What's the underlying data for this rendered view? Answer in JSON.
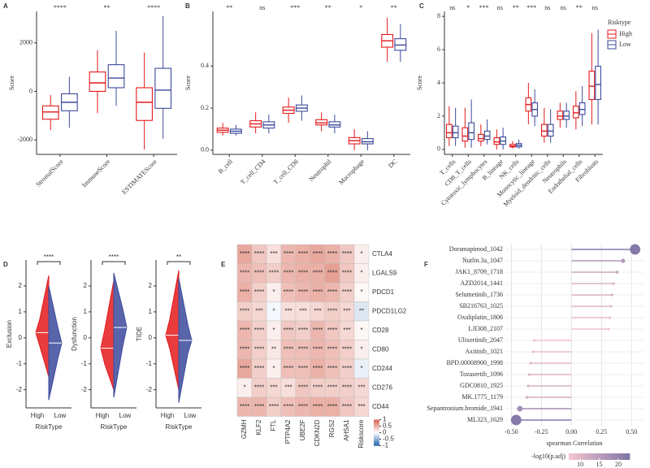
{
  "chart_data": [
    {
      "type": "box",
      "panel": "A",
      "ylabel": "Score",
      "categories": [
        "StromalScore",
        "ImmuneScore",
        "ESTIMATEScore"
      ],
      "significance": [
        "****",
        "**",
        "****"
      ],
      "ylim": [
        -2600,
        3300
      ],
      "yticks": [
        -2000,
        0,
        2000
      ],
      "series": [
        {
          "color": "#e41a1c",
          "values": [
            [
              -1600,
              -1150,
              -850,
              -600,
              -150
            ],
            [
              -900,
              0,
              350,
              800,
              1700
            ],
            [
              -2400,
              -1200,
              -450,
              150,
              1600
            ]
          ]
        },
        {
          "color": "#3c4a9c",
          "values": [
            [
              -1500,
              -800,
              -450,
              -100,
              600
            ],
            [
              -600,
              150,
              550,
              1100,
              2500
            ],
            [
              -1950,
              -700,
              50,
              950,
              3100
            ]
          ]
        }
      ]
    },
    {
      "type": "box",
      "panel": "B",
      "ylabel": "Score",
      "categories": [
        "B_cell",
        "T_cell_CD4",
        "T_cell_CD8",
        "Neutrophil",
        "Macrophage",
        "DC"
      ],
      "significance": [
        "**",
        "ns",
        "***",
        "**",
        "*",
        "**"
      ],
      "ylim": [
        -0.02,
        0.66
      ],
      "yticks": [
        {
          "value": 0,
          "label": "0.0"
        },
        0.2,
        0.4
      ],
      "series": [
        {
          "color": "#e41a1c",
          "values": [
            [
              0.07,
              0.085,
              0.095,
              0.105,
              0.13
            ],
            [
              0.08,
              0.11,
              0.125,
              0.14,
              0.18
            ],
            [
              0.13,
              0.175,
              0.19,
              0.205,
              0.25
            ],
            [
              0.09,
              0.12,
              0.13,
              0.145,
              0.18
            ],
            [
              0.0,
              0.03,
              0.045,
              0.06,
              0.1
            ],
            [
              0.42,
              0.49,
              0.52,
              0.55,
              0.63
            ]
          ]
        },
        {
          "color": "#3c4a9c",
          "values": [
            [
              0.07,
              0.08,
              0.09,
              0.1,
              0.12
            ],
            [
              0.08,
              0.105,
              0.12,
              0.135,
              0.17
            ],
            [
              0.14,
              0.185,
              0.2,
              0.215,
              0.26
            ],
            [
              0.08,
              0.11,
              0.12,
              0.135,
              0.17
            ],
            [
              0.0,
              0.03,
              0.04,
              0.055,
              0.09
            ],
            [
              0.42,
              0.475,
              0.5,
              0.53,
              0.6
            ]
          ]
        }
      ]
    },
    {
      "type": "box",
      "panel": "C",
      "ylabel": "Score",
      "categories": [
        "T_cells",
        "CD8_T_cells",
        "Cytotoxic_lymphocytes",
        "B_lineage",
        "NK_cells",
        "Monocytic_lineage",
        "Myeloid_dendritic_cells",
        "Neutrophils",
        "Endothelial_cells",
        "Fibroblasts"
      ],
      "significance": [
        "ns",
        "*",
        "***",
        "ns",
        "**",
        "***",
        "ns",
        "ns",
        "**",
        "ns"
      ],
      "ylim": [
        -0.3,
        8.3
      ],
      "yticks": [
        0,
        2,
        4,
        6,
        8
      ],
      "legend_title": "Risktype",
      "series": [
        {
          "name": "High",
          "color": "#e41a1c",
          "values": [
            [
              0.2,
              0.7,
              1.0,
              1.5,
              2.6
            ],
            [
              0.1,
              0.5,
              0.8,
              1.3,
              2.5
            ],
            [
              0.2,
              0.5,
              0.65,
              0.9,
              1.5
            ],
            [
              0.0,
              0.3,
              0.45,
              0.7,
              1.2
            ],
            [
              0.05,
              0.15,
              0.2,
              0.3,
              0.5
            ],
            [
              1.5,
              2.3,
              2.7,
              3.1,
              4.0
            ],
            [
              0.4,
              0.8,
              1.1,
              1.5,
              2.5
            ],
            [
              1.3,
              1.8,
              2.0,
              2.3,
              2.8
            ],
            [
              1.2,
              1.9,
              2.2,
              2.6,
              3.5
            ],
            [
              1.5,
              3.0,
              3.8,
              4.7,
              7.0
            ]
          ]
        },
        {
          "name": "Low",
          "color": "#3c4a9c",
          "values": [
            [
              0.2,
              0.7,
              1.0,
              1.4,
              2.5
            ],
            [
              0.1,
              0.6,
              1.0,
              1.6,
              3.0
            ],
            [
              0.3,
              0.6,
              0.8,
              1.1,
              1.8
            ],
            [
              0.0,
              0.3,
              0.5,
              0.75,
              1.3
            ],
            [
              0.05,
              0.15,
              0.25,
              0.35,
              0.6
            ],
            [
              1.4,
              2.0,
              2.4,
              2.8,
              3.6
            ],
            [
              0.4,
              0.8,
              1.1,
              1.5,
              2.4
            ],
            [
              1.3,
              1.8,
              2.0,
              2.3,
              2.8
            ],
            [
              1.4,
              2.1,
              2.4,
              2.8,
              3.8
            ],
            [
              1.5,
              3.0,
              3.9,
              5.0,
              7.2
            ]
          ]
        }
      ]
    },
    {
      "type": "violin",
      "panel": "D",
      "categories": [
        "High",
        "Low"
      ],
      "xlabel": "RiskType",
      "subplots": [
        {
          "ylabel": "Exclusion",
          "significance": "****",
          "ylim": [
            -2.7,
            3.0
          ],
          "yticks": [
            -2,
            -1,
            0,
            1,
            2
          ],
          "series": [
            {
              "color": "#e41a1c",
              "values": [
                -1.5,
                -0.3,
                0.2,
                0.7,
                2.4
              ]
            },
            {
              "color": "#3c4a9c",
              "values": [
                -2.4,
                -0.8,
                -0.2,
                0.4,
                2.0
              ]
            }
          ]
        },
        {
          "ylabel": "Dysfunction",
          "significance": "****",
          "ylim": [
            -2.7,
            3.0
          ],
          "yticks": [
            -2,
            -1,
            0,
            1,
            2
          ],
          "series": [
            {
              "color": "#e41a1c",
              "values": [
                -2.0,
                -1.0,
                -0.4,
                0.3,
                2.2
              ]
            },
            {
              "color": "#3c4a9c",
              "values": [
                -2.3,
                -0.3,
                0.4,
                1.1,
                2.5
              ]
            }
          ]
        },
        {
          "ylabel": "TIDE",
          "significance": "**",
          "ylim": [
            -2.7,
            3.0
          ],
          "yticks": [
            -2,
            -1,
            0,
            1,
            2
          ],
          "series": [
            {
              "color": "#e41a1c",
              "values": [
                -2.0,
                -0.4,
                0.1,
                0.7,
                2.6
              ]
            },
            {
              "color": "#3c4a9c",
              "values": [
                -2.5,
                -0.6,
                -0.1,
                0.5,
                2.3
              ]
            }
          ]
        }
      ]
    },
    {
      "type": "heatmap",
      "panel": "E",
      "rows": [
        "CTLA4",
        "LGALS9",
        "PDCD1",
        "PDCD1LG2",
        "CD28",
        "CD80",
        "CD244",
        "CD276",
        "CD44"
      ],
      "columns": [
        "GZMH",
        "KLF2",
        "FTL",
        "PTP4A2",
        "UBE2F",
        "CDKN2D",
        "RGS2",
        "AHSA1",
        "Riskscore"
      ],
      "values": [
        [
          0.55,
          0.35,
          0.2,
          0.45,
          0.5,
          0.55,
          0.5,
          0.35,
          0.1
        ],
        [
          0.45,
          0.4,
          0.3,
          0.45,
          0.5,
          0.5,
          0.6,
          0.35,
          0.1
        ],
        [
          0.5,
          0.3,
          0.1,
          0.4,
          0.45,
          0.5,
          0.45,
          0.3,
          0.05
        ],
        [
          0.3,
          0.25,
          -0.05,
          0.2,
          0.2,
          0.25,
          0.3,
          0.25,
          -0.15
        ],
        [
          0.45,
          0.3,
          0.1,
          0.35,
          0.3,
          0.45,
          0.35,
          0.25,
          0.05
        ],
        [
          0.45,
          0.3,
          0.15,
          0.4,
          0.4,
          0.45,
          0.4,
          0.3,
          0.1
        ],
        [
          0.55,
          0.3,
          0.1,
          0.4,
          0.4,
          0.5,
          0.4,
          0.3,
          -0.1
        ],
        [
          0.1,
          0.3,
          0.25,
          0.2,
          0.35,
          0.3,
          0.3,
          0.3,
          0.25
        ],
        [
          0.45,
          0.45,
          0.3,
          0.4,
          0.45,
          0.5,
          0.5,
          0.35,
          0.25
        ]
      ],
      "value_labels": [
        [
          "****",
          "****",
          "***",
          "****",
          "****",
          "****",
          "****",
          "****",
          "*"
        ],
        [
          "****",
          "****",
          "****",
          "****",
          "****",
          "****",
          "****",
          "****",
          "*"
        ],
        [
          "****",
          "****",
          "*",
          "****",
          "****",
          "****",
          "****",
          "****",
          "*"
        ],
        [
          "****",
          "***",
          "*",
          "***",
          "***",
          "***",
          "****",
          "***",
          "**"
        ],
        [
          "****",
          "****",
          "*",
          "****",
          "****",
          "****",
          "****",
          "***",
          "*"
        ],
        [
          "****",
          "****",
          "**",
          "****",
          "****",
          "****",
          "****",
          "****",
          "*"
        ],
        [
          "****",
          "****",
          "*",
          "****",
          "****",
          "****",
          "****",
          "****",
          "*"
        ],
        [
          "*",
          "****",
          "***",
          "***",
          "****",
          "****",
          "****",
          "****",
          "***"
        ],
        [
          "****",
          "****",
          "****",
          "****",
          "****",
          "****",
          "****",
          "****",
          "***"
        ]
      ],
      "clim": [
        -1,
        1
      ],
      "colorbar_ticks": [
        1,
        0.5,
        0,
        -0.5,
        -1
      ],
      "colors": [
        "#2166ac",
        "#ffffff",
        "#d6604d"
      ]
    },
    {
      "type": "lollipop",
      "panel": "F",
      "xlabel": "spearman Correlation",
      "categories": [
        "Doramapimod_1042",
        "Nutlin.3a_1047",
        "JAK1_8709_1718",
        "AZD2014_1441",
        "Selumetinib_1736",
        "SB216763_1025",
        "Oxaliplatin_1806",
        "LJI308_2107",
        "Ulixertinib_2047",
        "Axitinib_1021",
        "BPD.00008900_1998",
        "Tozasertib_1096",
        "GDC0810_1925",
        "MK.1775_1179",
        "Sepantronium.bromide_1941",
        "ML323_1629"
      ],
      "values": [
        0.53,
        0.43,
        0.38,
        0.35,
        0.34,
        0.33,
        0.32,
        0.31,
        -0.31,
        -0.32,
        -0.34,
        -0.35,
        -0.36,
        -0.37,
        -0.43,
        -0.46
      ],
      "color_values": [
        22,
        16,
        13,
        11,
        11,
        10,
        9,
        8,
        8,
        9,
        10,
        11,
        11,
        12,
        18,
        22
      ],
      "xlim": [
        -0.55,
        0.6
      ],
      "xticks": [
        {
          "value": -0.5,
          "label": "-0.50"
        },
        {
          "value": -0.25,
          "label": "-0.25"
        },
        {
          "value": 0,
          "label": "0.00"
        },
        {
          "value": 0.25,
          "label": "0.25"
        },
        {
          "value": 0.5,
          "label": "0.50"
        }
      ],
      "color_title": "-log10(p.adj)",
      "clim": [
        7,
        23
      ],
      "color_ticks": [
        10,
        15,
        20
      ],
      "colors": [
        "#f7c6cf",
        "#7d75a6"
      ]
    }
  ]
}
